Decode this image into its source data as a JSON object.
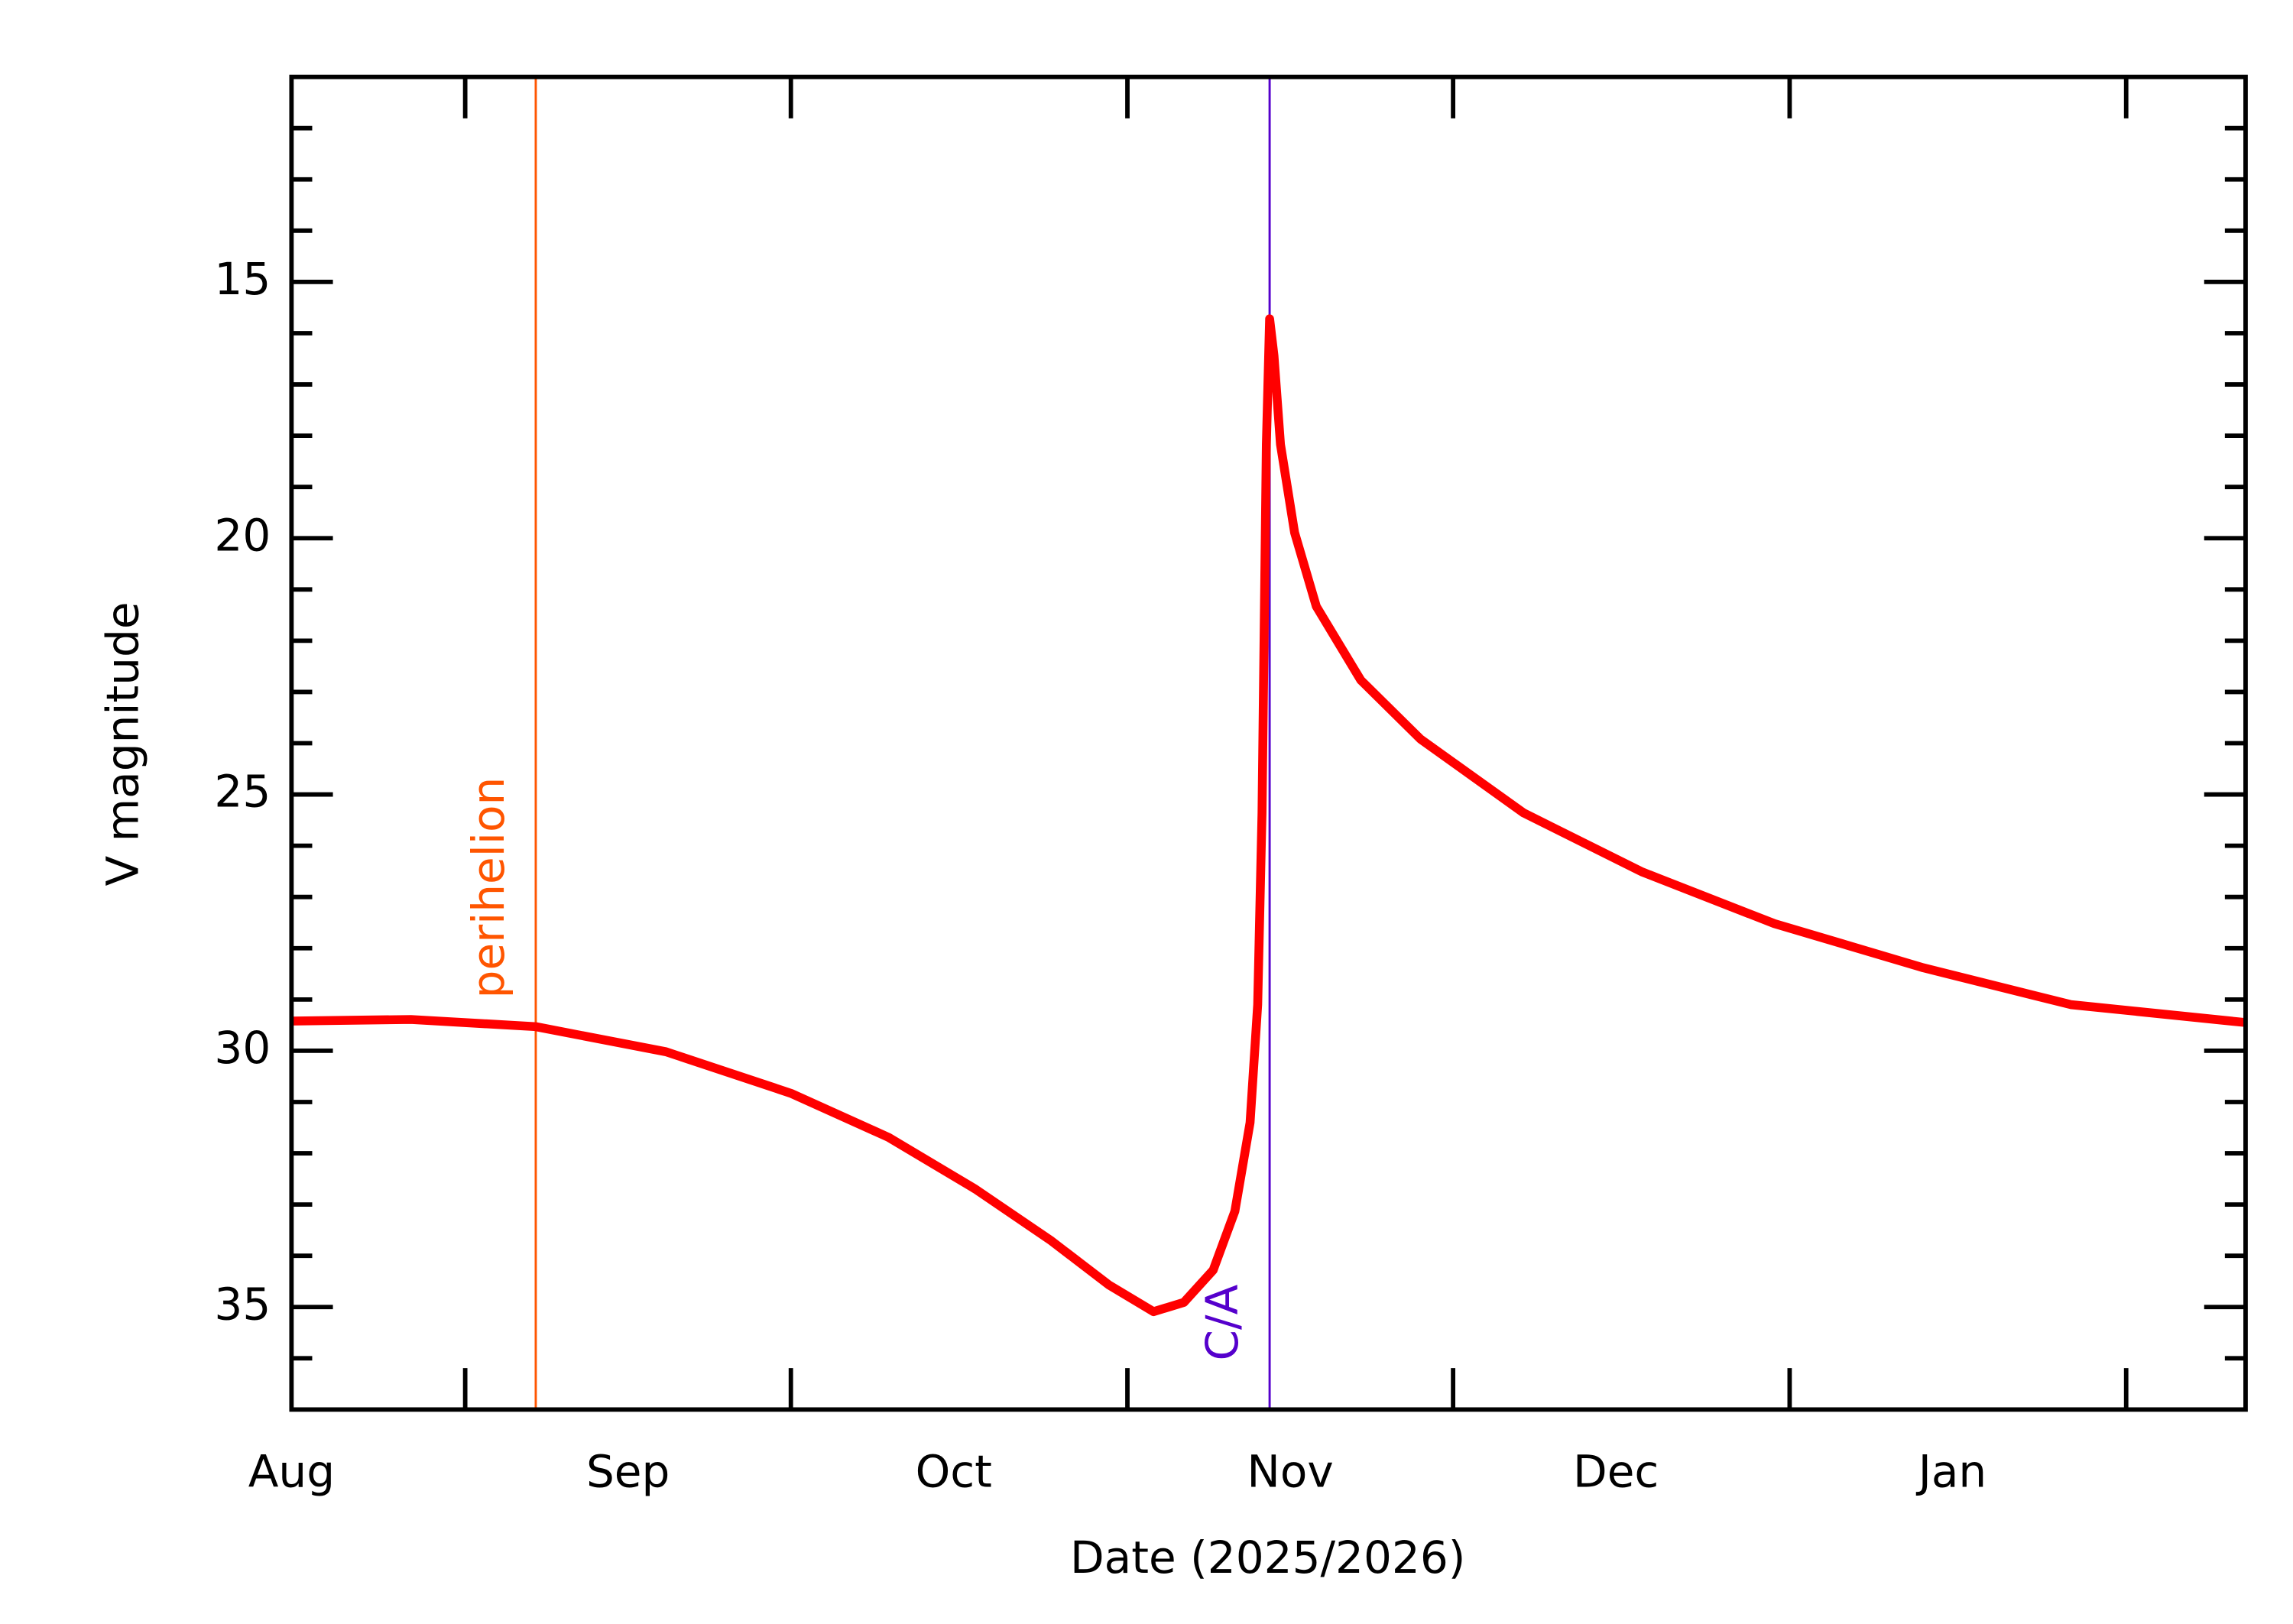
{
  "chart_data": {
    "type": "line",
    "xlabel": "Date (2025/2026)",
    "ylabel": "V magnitude",
    "x": [
      0,
      11,
      22.5,
      34.5,
      46,
      55,
      63,
      70,
      75.3,
      79.4,
      82.2,
      84.9,
      86.9,
      88.3,
      89,
      89.4,
      89.8,
      90.1,
      90.5,
      91.1,
      92.4,
      94.4,
      98.5,
      104,
      113.5,
      124.4,
      136.6,
      150.3,
      163.9,
      180
    ],
    "series": [
      {
        "name": "V magnitude",
        "color": "#ff0000",
        "values": [
          29.42,
          29.39,
          29.53,
          30.02,
          30.83,
          31.69,
          32.7,
          33.71,
          34.57,
          35.09,
          34.91,
          34.28,
          33.13,
          31.4,
          29.1,
          25.36,
          18.17,
          15.72,
          16.44,
          18.17,
          19.89,
          21.33,
          22.77,
          23.92,
          25.36,
          26.51,
          27.52,
          28.38,
          29.1,
          29.45
        ]
      }
    ],
    "xlim": [
      0,
      180
    ],
    "xticks": [
      {
        "value": 0,
        "label": "Aug"
      },
      {
        "value": 31,
        "label": "Sep"
      },
      {
        "value": 61,
        "label": "Oct"
      },
      {
        "value": 92,
        "label": "Nov"
      },
      {
        "value": 122,
        "label": "Dec"
      },
      {
        "value": 153,
        "label": "Jan"
      }
    ],
    "xticks_unlabeled": [
      16,
      46,
      77,
      107,
      138,
      169
    ],
    "ylim": [
      37,
      11
    ],
    "yticks": [
      15,
      20,
      25,
      30,
      35
    ],
    "yminor_ticks": [
      12,
      13,
      14,
      16,
      17,
      18,
      19,
      21,
      22,
      23,
      24,
      26,
      27,
      28,
      29,
      31,
      32,
      33,
      34,
      36
    ],
    "vlines": [
      {
        "x": 22.5,
        "label": "perihelion",
        "color": "#ff5500"
      },
      {
        "x": 90.1,
        "label": "C/A",
        "color": "#5500cc"
      }
    ]
  }
}
